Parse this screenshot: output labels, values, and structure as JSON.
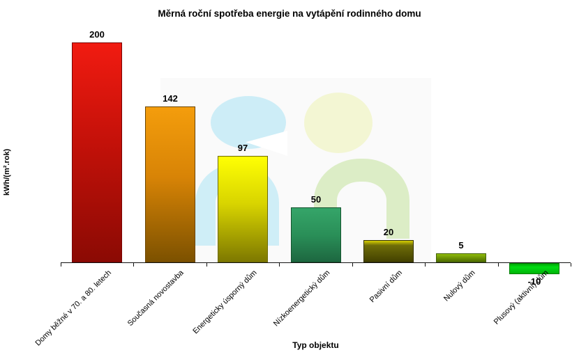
{
  "chart": {
    "title": "Měrná roční spotřeba energie na vytápění rodinného domu",
    "x_axis_title": "Typ objektu",
    "y_axis_title": "kWh/(m².rok)"
  },
  "chart_data": {
    "type": "bar",
    "title": "Měrná roční spotřeba energie na vytápění rodinného domu",
    "xlabel": "Typ objektu",
    "ylabel": "kWh/(m².rok)",
    "categories": [
      "Domy běžné v 70. a 80. letech",
      "Současná novostavba",
      "Energeticky úsporný dům",
      "Nízkoenergetický dům",
      "Pasivní dům",
      "Nulový dům",
      "Plusový (aktivní) dům"
    ],
    "values": [
      200,
      142,
      97,
      50,
      20,
      5,
      -10
    ],
    "data_labels": [
      "200",
      "142",
      "97",
      "50",
      "20",
      "5",
      "-10"
    ],
    "ylim": [
      -10,
      200
    ],
    "grid": false,
    "legend": "none",
    "bar_styles": [
      {
        "gradient": [
          "#f11b11 0%",
          "#c41109 45%",
          "#8b0a04 100%"
        ],
        "edge": "#7a0202"
      },
      {
        "gradient": [
          "#f49d0c 0%",
          "#d88406 45%",
          "#7c5100 100%"
        ],
        "edge": "#6b4500"
      },
      {
        "gradient": [
          "#ffff03 0%",
          "#d8d400 45%",
          "#7d7800 100%"
        ],
        "edge": "#6e6a00"
      },
      {
        "gradient": [
          "#35a569 0%",
          "#2a8f58 50%",
          "#1d6740 100%"
        ],
        "edge": "#14532d"
      },
      {
        "gradient": [
          "#d8cf00 0%",
          "#6f6d08 22%",
          "#434100 100%"
        ],
        "edge": "#333000"
      },
      {
        "gradient": [
          "#8fbc0c 0%",
          "#688c04 60%",
          "#4e6b00 100%"
        ],
        "edge": "#44610b"
      },
      {
        "gradient": [
          "#00a506 0%",
          "#00dd12 35%",
          "#00b40a 100%"
        ],
        "edge": "#007d04"
      }
    ]
  },
  "watermark": {
    "left_figure": {
      "icon": "person-figure-icon",
      "head_color": "#cdedf7",
      "body_color": "#cfeef7"
    },
    "right_figure": {
      "icon": "person-figure-icon",
      "head_color": "#f3f6d3",
      "body_color": "#dcedc6"
    }
  }
}
